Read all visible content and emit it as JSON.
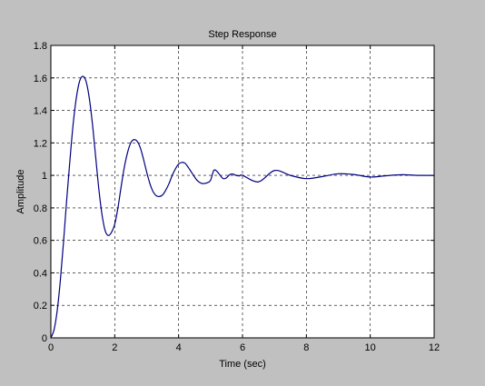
{
  "colors": {
    "figure_background": "#c0c0c0",
    "axes_background": "#ffffff",
    "line": "#000080",
    "grid": "#000000"
  },
  "chart_data": {
    "type": "line",
    "title": "Step Response",
    "xlabel": "Time (sec)",
    "ylabel": "Amplitude",
    "xlim": [
      0,
      12
    ],
    "ylim": [
      0,
      1.8
    ],
    "grid": true,
    "grid_style": "dashed",
    "xticks": [
      0,
      2,
      4,
      6,
      8,
      10,
      12
    ],
    "xtick_labels": [
      "0",
      "2",
      "4",
      "6",
      "8",
      "10",
      "12"
    ],
    "yticks": [
      0,
      0.2,
      0.4,
      0.6,
      0.8,
      1,
      1.2,
      1.4,
      1.6,
      1.8
    ],
    "ytick_labels": [
      "0",
      "0.2",
      "0.4",
      "0.6",
      "0.8",
      "1",
      "1.2",
      "1.4",
      "1.6",
      "1.8"
    ],
    "series": [
      {
        "color": "#000080",
        "x": [
          0,
          0.1,
          0.2,
          0.3,
          0.4,
          0.5,
          0.6,
          0.7,
          0.8,
          0.9,
          1.0,
          1.1,
          1.2,
          1.3,
          1.4,
          1.5,
          1.6,
          1.7,
          1.8,
          1.9,
          2.0,
          2.1,
          2.2,
          2.3,
          2.4,
          2.5,
          2.6,
          2.7,
          2.8,
          2.9,
          3.0,
          3.1,
          3.2,
          3.3,
          3.4,
          3.5,
          3.6,
          3.7,
          3.8,
          3.9,
          4.0,
          4.1,
          4.2,
          4.3,
          4.4,
          4.5,
          4.6,
          4.7,
          4.8,
          4.9,
          5.0,
          5.1,
          5.2,
          5.3,
          5.4,
          5.5,
          5.6,
          5.7,
          5.8,
          5.9,
          6.0,
          6.5,
          7.0,
          7.5,
          8.0,
          8.5,
          9.0,
          9.5,
          10.0,
          10.5,
          11.0,
          11.5,
          12.0
        ],
        "y": [
          0,
          0.05,
          0.17,
          0.36,
          0.6,
          0.86,
          1.1,
          1.32,
          1.48,
          1.58,
          1.61,
          1.58,
          1.48,
          1.32,
          1.12,
          0.92,
          0.76,
          0.66,
          0.63,
          0.65,
          0.7,
          0.8,
          0.93,
          1.05,
          1.14,
          1.2,
          1.22,
          1.21,
          1.17,
          1.1,
          1.02,
          0.95,
          0.9,
          0.875,
          0.87,
          0.88,
          0.91,
          0.95,
          1.0,
          1.04,
          1.07,
          1.08,
          1.075,
          1.05,
          1.02,
          0.99,
          0.965,
          0.952,
          0.95,
          0.955,
          0.97,
          1.03,
          1.025,
          1.0,
          0.98,
          0.985,
          1.005,
          1.008,
          1.0,
          0.997,
          1.0,
          0.96,
          1.03,
          1.0,
          0.98,
          0.993,
          1.01,
          1.005,
          0.99,
          0.998,
          1.004,
          1.0,
          1.0
        ]
      }
    ]
  }
}
